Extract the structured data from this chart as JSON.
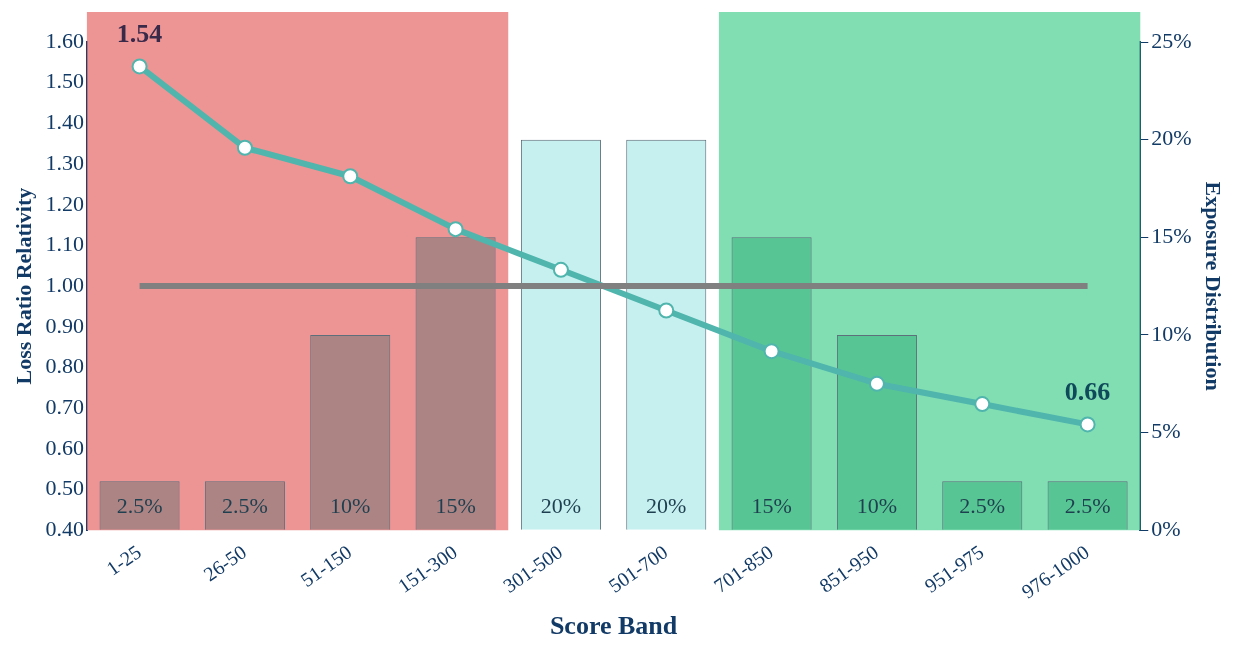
{
  "chart_data": {
    "type": "bar",
    "xlabel": "Score Band",
    "ylabel": "Loss Ratio Relativity",
    "y2label": "Exposure Distribution",
    "categories": [
      "1-25",
      "26-50",
      "51-150",
      "151-300",
      "301-500",
      "501-700",
      "701-850",
      "851-950",
      "951-975",
      "976-1000"
    ],
    "series": [
      {
        "type": "bar",
        "axis": "y2",
        "values": [
          2.5,
          2.5,
          10,
          15,
          20,
          20,
          15,
          10,
          2.5,
          2.5
        ],
        "colors": [
          "#9c7f80",
          "#9c7f80",
          "#9c7f80",
          "#9c7f80",
          "#b8ecec",
          "#b8ecec",
          "#4dbf8c",
          "#4dbf8c",
          "#4dbf8c",
          "#4dbf8c"
        ],
        "value_labels": [
          "2.5%",
          "2.5%",
          "10%",
          "15%",
          "20%",
          "20%",
          "15%",
          "10%",
          "2.5%",
          "2.5%"
        ]
      },
      {
        "type": "line",
        "color": "#4fb5ad",
        "marker": "circle",
        "values": [
          1.54,
          1.34,
          1.27,
          1.14,
          1.04,
          0.94,
          0.84,
          0.76,
          0.71,
          0.66
        ],
        "value_labels": [
          "1.54",
          null,
          null,
          null,
          null,
          null,
          null,
          null,
          null,
          "0.66"
        ]
      }
    ],
    "ylim": [
      0.4,
      1.6
    ],
    "yticks": [
      {
        "value": 0.4,
        "label": "0.40"
      },
      {
        "value": 0.5,
        "label": "0.50"
      },
      {
        "value": 0.6,
        "label": "0.60"
      },
      {
        "value": 0.7,
        "label": "0.70"
      },
      {
        "value": 0.8,
        "label": "0.80"
      },
      {
        "value": 0.9,
        "label": "0.90"
      },
      {
        "value": 1.0,
        "label": "1.00"
      },
      {
        "value": 1.1,
        "label": "1.10"
      },
      {
        "value": 1.2,
        "label": "1.20"
      },
      {
        "value": 1.3,
        "label": "1.30"
      },
      {
        "value": 1.4,
        "label": "1.40"
      },
      {
        "value": 1.5,
        "label": "1.50"
      },
      {
        "value": 1.6,
        "label": "1.60"
      }
    ],
    "y2lim": [
      0,
      25
    ],
    "y2ticks": [
      {
        "value": 0,
        "label": "0%"
      },
      {
        "value": 5,
        "label": "5%"
      },
      {
        "value": 10,
        "label": "10%"
      },
      {
        "value": 15,
        "label": "15%"
      },
      {
        "value": 20,
        "label": "20%"
      },
      {
        "value": 25,
        "label": "25%"
      }
    ],
    "ref_lines": [
      {
        "axis": "y",
        "value": 1.0,
        "color": "#808080"
      }
    ],
    "bands": [
      {
        "axis": "x",
        "from": "1-25",
        "to": "151-300",
        "color": "#e87a7a"
      },
      {
        "axis": "x",
        "from": "701-850",
        "to": "976-1000",
        "color": "#62d6a0"
      }
    ],
    "grid": false,
    "legend": false
  }
}
